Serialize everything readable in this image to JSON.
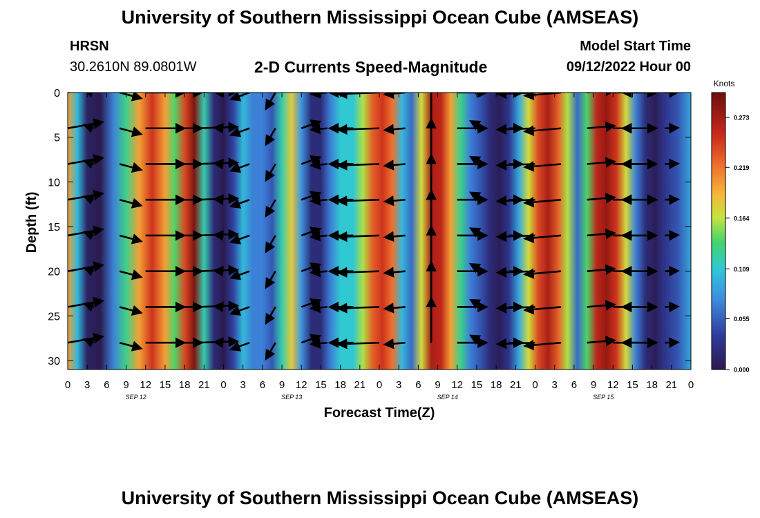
{
  "header": {
    "title": "University of Southern Mississippi Ocean Cube (AMSEAS)",
    "station": "HRSN",
    "coords": "30.2610N  89.0801W",
    "subtitle": "2-D Currents Speed-Magnitude",
    "model_start_label": "Model Start Time",
    "model_start_value": "09/12/2022 Hour 00"
  },
  "footer": {
    "title": "University of Southern Mississippi Ocean Cube (AMSEAS)"
  },
  "chart_data": {
    "type": "heatmap",
    "title": "2-D Currents Speed-Magnitude",
    "xlabel": "Forecast Time(Z)",
    "ylabel": "Depth (ft)",
    "x_hours": [
      0,
      96
    ],
    "x_ticks": [
      {
        "hour": 0,
        "label": "0"
      },
      {
        "hour": 3,
        "label": "3"
      },
      {
        "hour": 6,
        "label": "6"
      },
      {
        "hour": 9,
        "label": "9"
      },
      {
        "hour": 12,
        "label": "12"
      },
      {
        "hour": 15,
        "label": "15"
      },
      {
        "hour": 18,
        "label": "18"
      },
      {
        "hour": 21,
        "label": "21"
      },
      {
        "hour": 24,
        "label": "0"
      },
      {
        "hour": 27,
        "label": "3"
      },
      {
        "hour": 30,
        "label": "6"
      },
      {
        "hour": 33,
        "label": "9"
      },
      {
        "hour": 36,
        "label": "12"
      },
      {
        "hour": 39,
        "label": "15"
      },
      {
        "hour": 42,
        "label": "18"
      },
      {
        "hour": 45,
        "label": "21"
      },
      {
        "hour": 48,
        "label": "0"
      },
      {
        "hour": 51,
        "label": "3"
      },
      {
        "hour": 54,
        "label": "6"
      },
      {
        "hour": 57,
        "label": "9"
      },
      {
        "hour": 60,
        "label": "12"
      },
      {
        "hour": 63,
        "label": "15"
      },
      {
        "hour": 66,
        "label": "18"
      },
      {
        "hour": 69,
        "label": "21"
      },
      {
        "hour": 72,
        "label": "0"
      },
      {
        "hour": 75,
        "label": "3"
      },
      {
        "hour": 78,
        "label": "6"
      },
      {
        "hour": 81,
        "label": "9"
      },
      {
        "hour": 84,
        "label": "12"
      },
      {
        "hour": 87,
        "label": "15"
      },
      {
        "hour": 90,
        "label": "18"
      },
      {
        "hour": 93,
        "label": "21"
      },
      {
        "hour": 96,
        "label": "0"
      }
    ],
    "day_labels": [
      {
        "hour": 10.5,
        "label": "SEP 12"
      },
      {
        "hour": 34.5,
        "label": "SEP 13"
      },
      {
        "hour": 58.5,
        "label": "SEP 14"
      },
      {
        "hour": 82.5,
        "label": "SEP 15"
      }
    ],
    "y_range": [
      0,
      31
    ],
    "y_ticks": [
      0,
      5,
      10,
      15,
      20,
      25,
      30
    ],
    "depths_ft": [
      0,
      4,
      8,
      12,
      16,
      20,
      24,
      28
    ],
    "colorbar": {
      "label": "Knots",
      "range": [
        0,
        0.3
      ],
      "ticks": [
        "0.000",
        "0.055",
        "0.109",
        "0.164",
        "0.219",
        "0.273"
      ],
      "tick_values": [
        0.0,
        0.055,
        0.109,
        0.164,
        0.219,
        0.273
      ]
    },
    "speed_profile_knots": [
      {
        "hour": 0,
        "speed": 0.2
      },
      {
        "hour": 1.5,
        "speed": 0.1
      },
      {
        "hour": 3,
        "speed": 0.01
      },
      {
        "hour": 5,
        "speed": 0.0
      },
      {
        "hour": 7,
        "speed": 0.07
      },
      {
        "hour": 9,
        "speed": 0.13
      },
      {
        "hour": 11,
        "speed": 0.2
      },
      {
        "hour": 13,
        "speed": 0.25
      },
      {
        "hour": 15,
        "speed": 0.2
      },
      {
        "hour": 16.5,
        "speed": 0.14
      },
      {
        "hour": 18,
        "speed": 0.24
      },
      {
        "hour": 19.5,
        "speed": 0.29
      },
      {
        "hour": 21,
        "speed": 0.12
      },
      {
        "hour": 22.5,
        "speed": 0.02
      },
      {
        "hour": 24,
        "speed": 0.0
      },
      {
        "hour": 25.5,
        "speed": 0.04
      },
      {
        "hour": 27,
        "speed": 0.1
      },
      {
        "hour": 28.5,
        "speed": 0.07
      },
      {
        "hour": 30,
        "speed": 0.07
      },
      {
        "hour": 31.5,
        "speed": 0.05
      },
      {
        "hour": 33,
        "speed": 0.12
      },
      {
        "hour": 34.5,
        "speed": 0.18
      },
      {
        "hour": 36,
        "speed": 0.08
      },
      {
        "hour": 37.5,
        "speed": 0.02
      },
      {
        "hour": 39,
        "speed": 0.02
      },
      {
        "hour": 40.5,
        "speed": 0.07
      },
      {
        "hour": 42,
        "speed": 0.11
      },
      {
        "hour": 44,
        "speed": 0.11
      },
      {
        "hour": 45.5,
        "speed": 0.16
      },
      {
        "hour": 47,
        "speed": 0.23
      },
      {
        "hour": 48.5,
        "speed": 0.25
      },
      {
        "hour": 50,
        "speed": 0.22
      },
      {
        "hour": 51.5,
        "speed": 0.1
      },
      {
        "hour": 53,
        "speed": 0.06
      },
      {
        "hour": 54.5,
        "speed": 0.17
      },
      {
        "hour": 56,
        "speed": 0.27
      },
      {
        "hour": 57.5,
        "speed": 0.26
      },
      {
        "hour": 59,
        "speed": 0.2
      },
      {
        "hour": 60.5,
        "speed": 0.13
      },
      {
        "hour": 62,
        "speed": 0.07
      },
      {
        "hour": 63.5,
        "speed": 0.05
      },
      {
        "hour": 65,
        "speed": 0.02
      },
      {
        "hour": 66.5,
        "speed": 0.005
      },
      {
        "hour": 68,
        "speed": 0.03
      },
      {
        "hour": 69.5,
        "speed": 0.09
      },
      {
        "hour": 71,
        "speed": 0.17
      },
      {
        "hour": 72.5,
        "speed": 0.24
      },
      {
        "hour": 74,
        "speed": 0.27
      },
      {
        "hour": 75.5,
        "speed": 0.23
      },
      {
        "hour": 77,
        "speed": 0.16
      },
      {
        "hour": 78.5,
        "speed": 0.06
      },
      {
        "hour": 80,
        "speed": 0.14
      },
      {
        "hour": 81.5,
        "speed": 0.26
      },
      {
        "hour": 83,
        "speed": 0.28
      },
      {
        "hour": 84.5,
        "speed": 0.25
      },
      {
        "hour": 86,
        "speed": 0.17
      },
      {
        "hour": 87.5,
        "speed": 0.07
      },
      {
        "hour": 89,
        "speed": 0.02
      },
      {
        "hour": 90.5,
        "speed": 0.005
      },
      {
        "hour": 92,
        "speed": 0.03
      },
      {
        "hour": 94,
        "speed": 0.05
      },
      {
        "hour": 96,
        "speed": 0.09
      }
    ],
    "vector_hours": [
      0,
      4,
      8,
      12,
      16,
      20,
      24,
      28,
      32,
      36,
      40,
      44,
      48,
      52,
      56,
      60,
      64,
      68,
      72,
      76,
      80,
      84,
      88,
      92,
      96
    ],
    "vector_angles_deg": [
      10,
      160,
      345,
      0,
      0,
      2,
      175,
      200,
      240,
      20,
      185,
      180,
      182,
      185,
      90,
      0,
      150,
      0,
      182,
      185,
      5,
      0,
      180,
      2,
      10
    ],
    "vector_scale_ft_per_knot_note": "arrow length proportional to speed"
  }
}
